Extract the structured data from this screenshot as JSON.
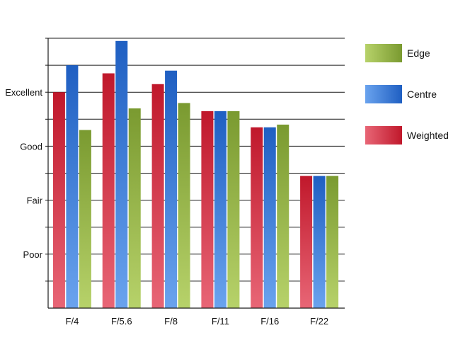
{
  "chart_data": {
    "type": "bar",
    "title": "",
    "xlabel": "",
    "ylabel": "",
    "categories": [
      "F/4",
      "F/5.6",
      "F/8",
      "F/11",
      "F/16",
      "F/22"
    ],
    "y_scale_labels": [
      "Poor",
      "Fair",
      "Good",
      "Excellent"
    ],
    "y_scale_values": [
      2,
      4,
      6,
      8
    ],
    "ylim": [
      0,
      10
    ],
    "grid": true,
    "legend_position": "right",
    "series": [
      {
        "name": "Weighted",
        "values": [
          8.0,
          8.7,
          8.3,
          7.3,
          6.7,
          4.9
        ],
        "color": "#c0182b",
        "color_light": "#e86676"
      },
      {
        "name": "Centre",
        "values": [
          9.0,
          9.9,
          8.8,
          7.3,
          6.7,
          4.9
        ],
        "color": "#1f5fc2",
        "color_light": "#6aa3ee"
      },
      {
        "name": "Edge",
        "values": [
          6.6,
          7.4,
          7.6,
          7.3,
          6.8,
          4.9
        ],
        "color": "#7a9a30",
        "color_light": "#b7d26a"
      }
    ],
    "legend_order": [
      "Edge",
      "Centre",
      "Weighted"
    ]
  }
}
